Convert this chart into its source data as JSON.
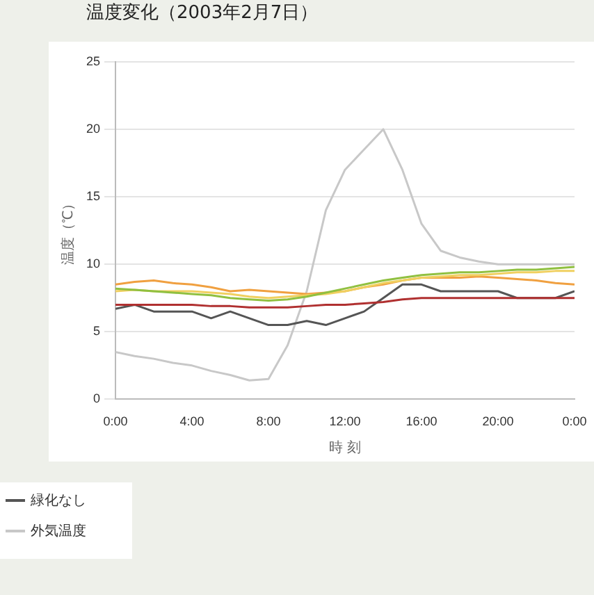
{
  "chart_data": {
    "type": "line",
    "title": "温度変化（2003年2月7日）",
    "xlabel": "時 刻",
    "ylabel": "温度（℃）",
    "x": [
      0,
      1,
      2,
      3,
      4,
      5,
      6,
      7,
      8,
      9,
      10,
      11,
      12,
      13,
      14,
      15,
      16,
      17,
      18,
      19,
      20,
      21,
      22,
      23,
      24
    ],
    "xlim": [
      0,
      24
    ],
    "xticks": [
      {
        "value": 0,
        "label": "0:00"
      },
      {
        "value": 4,
        "label": "4:00"
      },
      {
        "value": 8,
        "label": "8:00"
      },
      {
        "value": 12,
        "label": "12:00"
      },
      {
        "value": 16,
        "label": "16:00"
      },
      {
        "value": 20,
        "label": "20:00"
      },
      {
        "value": 24,
        "label": "0:00"
      }
    ],
    "ylim": [
      0,
      25
    ],
    "yticks": [
      0,
      5,
      10,
      15,
      20,
      25
    ],
    "grid": "y",
    "legend": "bottom left",
    "marker": "none",
    "line_style": "solid",
    "series": [
      {
        "color": "#90c040",
        "values": [
          8.2,
          8.1,
          8,
          7.9,
          7.8,
          7.7,
          7.5,
          7.4,
          7.3,
          7.4,
          7.6,
          7.9,
          8.2,
          8.5,
          8.8,
          9,
          9.2,
          9.3,
          9.4,
          9.4,
          9.5,
          9.6,
          9.6,
          9.7,
          9.8
        ]
      },
      {
        "color": "#f0d060",
        "values": [
          8,
          8.1,
          8,
          8,
          8,
          7.9,
          7.8,
          7.6,
          7.5,
          7.6,
          7.7,
          7.8,
          8,
          8.3,
          8.6,
          8.8,
          9,
          9.1,
          9.2,
          9.2,
          9.3,
          9.4,
          9.4,
          9.5,
          9.5
        ]
      },
      {
        "color": "#f0a040",
        "values": [
          8.5,
          8.7,
          8.8,
          8.6,
          8.5,
          8.3,
          8,
          8.1,
          8,
          7.9,
          7.8,
          7.9,
          8,
          8.3,
          8.5,
          8.8,
          9,
          9,
          9,
          9.1,
          9,
          8.9,
          8.8,
          8.6,
          8.5
        ]
      },
      {
        "color": "#b03030",
        "values": [
          7,
          7,
          7,
          7,
          7,
          6.9,
          6.9,
          6.8,
          6.8,
          6.8,
          6.9,
          7,
          7,
          7.1,
          7.2,
          7.4,
          7.5,
          7.5,
          7.5,
          7.5,
          7.5,
          7.5,
          7.5,
          7.5,
          7.5
        ]
      },
      {
        "name": "緑化なし",
        "color": "#555555",
        "values": [
          6.7,
          7,
          6.5,
          6.5,
          6.5,
          6,
          6.5,
          6,
          5.5,
          5.5,
          5.8,
          5.5,
          6,
          6.5,
          7.5,
          8.5,
          8.5,
          8,
          8,
          8,
          8,
          7.5,
          7.5,
          7.5,
          8
        ]
      },
      {
        "name": "外気温度",
        "color": "#c8c8c8",
        "values": [
          3.5,
          3.2,
          3,
          2.7,
          2.5,
          2.1,
          1.8,
          1.4,
          1.5,
          4,
          8,
          14,
          17,
          18.5,
          20,
          17,
          13,
          11,
          10.5,
          10.2,
          10,
          10,
          10,
          10,
          10
        ]
      }
    ]
  }
}
